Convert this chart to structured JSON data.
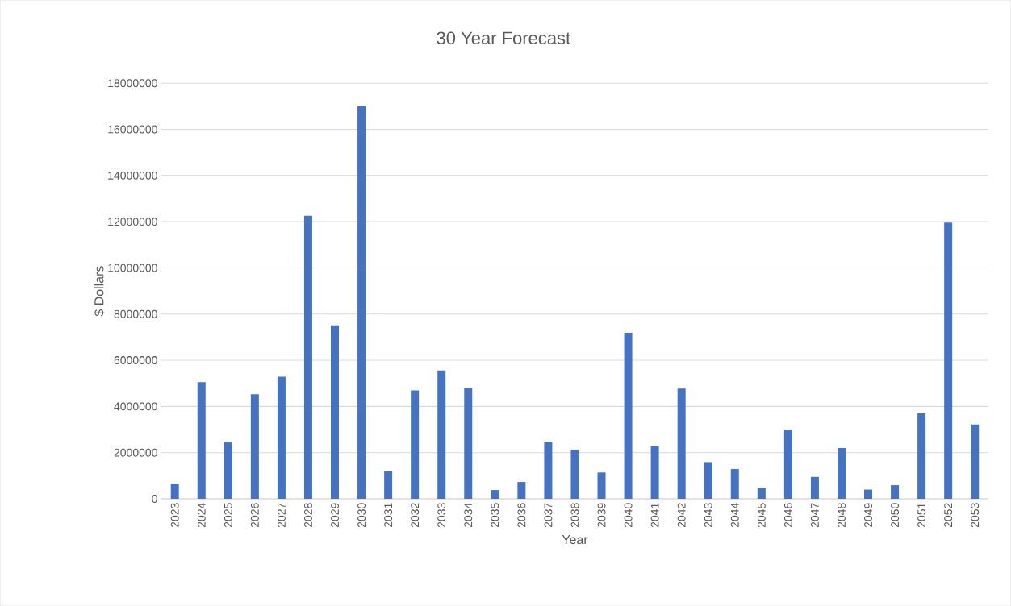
{
  "chart_data": {
    "type": "bar",
    "title": "30 Year Forecast",
    "xlabel": "Year",
    "ylabel": "$ Dollars",
    "categories": [
      "2023",
      "2024",
      "2025",
      "2026",
      "2027",
      "2028",
      "2029",
      "2030",
      "2031",
      "2032",
      "2033",
      "2034",
      "2035",
      "2036",
      "2037",
      "2038",
      "2039",
      "2040",
      "2041",
      "2042",
      "2043",
      "2044",
      "2045",
      "2046",
      "2047",
      "2048",
      "2049",
      "2050",
      "2051",
      "2052",
      "2053"
    ],
    "values": [
      660000,
      5050000,
      2440000,
      4530000,
      5290000,
      12260000,
      7510000,
      17000000,
      1200000,
      4690000,
      5560000,
      4800000,
      380000,
      730000,
      2450000,
      2130000,
      1140000,
      7190000,
      2280000,
      4770000,
      1590000,
      1290000,
      480000,
      2990000,
      950000,
      2200000,
      400000,
      590000,
      3700000,
      11960000,
      3220000
    ],
    "color": "#4472c4",
    "ylim": [
      0,
      18000000
    ],
    "yticks": [
      0,
      2000000,
      4000000,
      6000000,
      8000000,
      10000000,
      12000000,
      14000000,
      16000000,
      18000000
    ],
    "grid": "y"
  }
}
